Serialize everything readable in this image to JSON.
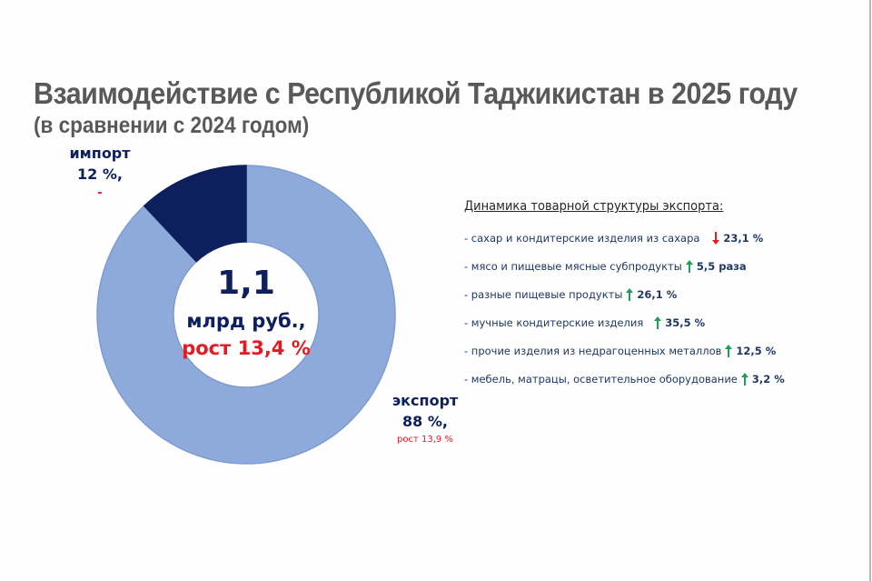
{
  "title": "Взаимодействие с Республикой Таджикистан в 2025 году",
  "subtitle": "(в сравнении с 2024 годом)",
  "center": {
    "value": "1,1",
    "unit": "млрд руб.,",
    "growth": "рост 13,4 %"
  },
  "segments": {
    "import": {
      "name": "импорт",
      "pct": "12 %,",
      "change": "-"
    },
    "export": {
      "name": "экспорт",
      "pct": "88 %,",
      "change": "рост 13,9 %"
    }
  },
  "dynamics": {
    "title": "Динамика товарной структуры экспорта:",
    "items": [
      {
        "text": "- сахар и кондитерские изделия из сахара",
        "direction": "down",
        "value": "23,1 %",
        "gap": 14
      },
      {
        "text": "- мясо и пищевые мясные субпродукты",
        "direction": "up",
        "value": "5,5 раза",
        "gap": 4
      },
      {
        "text": "- разные пищевые продукты",
        "direction": "up",
        "value": "26,1 %",
        "gap": 4
      },
      {
        "text": "- мучные кондитерские изделия",
        "direction": "up",
        "value": "35,5 %",
        "gap": 12
      },
      {
        "text": "- прочие изделия из недрагоценных металлов",
        "direction": "up",
        "value": "12,5 %",
        "gap": 4
      },
      {
        "text": "- мебель, матрацы, осветительное оборудование",
        "direction": "up",
        "value": "3,2 %",
        "gap": 4
      }
    ]
  },
  "colors": {
    "import": "#0d1f5c",
    "export": "#8eaadb",
    "export_border": "#7f9ccf",
    "growth_red": "#e31b23",
    "arrow_up": "#1e9e5a",
    "arrow_down": "#e31b23",
    "title_gray": "#595959"
  },
  "chart_data": {
    "type": "pie",
    "variant": "donut",
    "title": "Взаимодействие с Республикой Таджикистан в 2025 году",
    "subtitle": "(в сравнении с 2024 годом)",
    "categories": [
      "экспорт",
      "импорт"
    ],
    "values": [
      88,
      12
    ],
    "unit": "%",
    "center_label": "1,1 млрд руб., рост 13,4 %",
    "total": {
      "value": 1.1,
      "unit": "млрд руб.",
      "growth_pct": 13.4
    },
    "annotations": [
      {
        "category": "импорт",
        "share_pct": 12,
        "change": "-"
      },
      {
        "category": "экспорт",
        "share_pct": 88,
        "change": "рост 13,9 %"
      }
    ],
    "side_table": {
      "title": "Динамика товарной структуры экспорта:",
      "rows": [
        {
          "item": "сахар и кондитерские изделия из сахара",
          "direction": "down",
          "change": "23,1 %"
        },
        {
          "item": "мясо и пищевые мясные субпродукты",
          "direction": "up",
          "change": "5,5 раза"
        },
        {
          "item": "разные пищевые продукты",
          "direction": "up",
          "change": "26,1 %"
        },
        {
          "item": "мучные кондитерские изделия",
          "direction": "up",
          "change": "35,5 %"
        },
        {
          "item": "прочие изделия из недрагоценных металлов",
          "direction": "up",
          "change": "12,5 %"
        },
        {
          "item": "мебель, матрацы, осветительное оборудование",
          "direction": "up",
          "change": "3,2 %"
        }
      ]
    },
    "legend": "none (inline labels)"
  }
}
